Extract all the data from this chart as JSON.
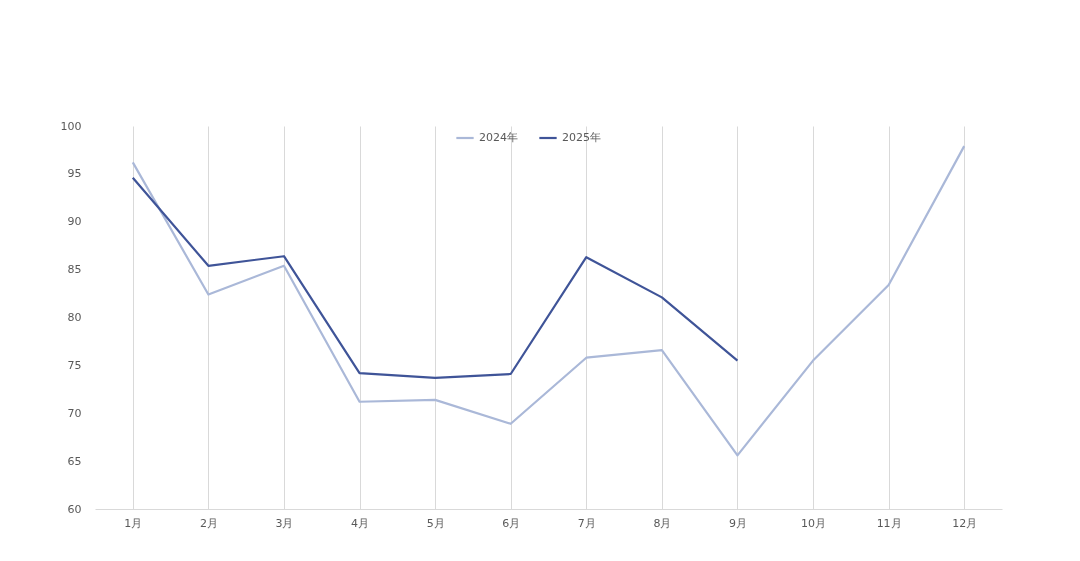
{
  "chart_data": {
    "type": "line",
    "categories": [
      "1月",
      "2月",
      "3月",
      "4月",
      "5月",
      "6月",
      "7月",
      "8月",
      "9月",
      "10月",
      "11月",
      "12月"
    ],
    "series": [
      {
        "name": "2024年",
        "color": "#aab8d8",
        "values": [
          96.2,
          82.4,
          85.4,
          71.2,
          71.4,
          68.9,
          75.8,
          76.6,
          65.6,
          75.5,
          83.4,
          97.9
        ]
      },
      {
        "name": "2025年",
        "color": "#3f5498",
        "values": [
          94.6,
          85.4,
          86.4,
          74.2,
          73.7,
          74.1,
          86.3,
          82.1,
          75.5,
          null,
          null,
          null
        ]
      }
    ],
    "ylim": [
      60,
      100
    ],
    "yticks": [
      60,
      65,
      70,
      75,
      80,
      85,
      90,
      95,
      100
    ],
    "grid": "x",
    "legend": "top",
    "marker": "none",
    "line_style": "solid"
  }
}
